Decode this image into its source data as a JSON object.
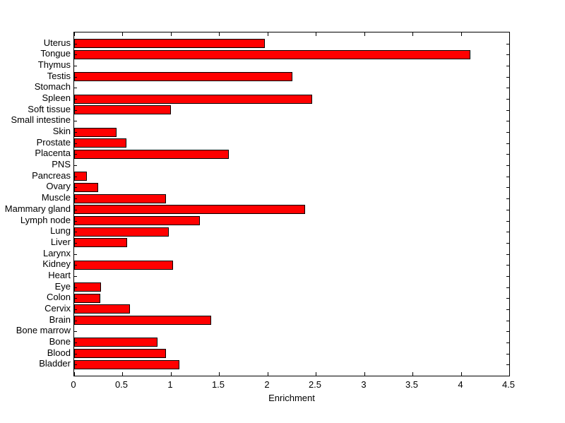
{
  "figure": {
    "background_color": "#ffffff",
    "axis_color": "#000000"
  },
  "chart_data": {
    "type": "bar",
    "orientation": "horizontal",
    "title": "",
    "xlabel": "Enrichment",
    "ylabel": "",
    "xlim": [
      0,
      4.5
    ],
    "xticks": [
      0,
      0.5,
      1,
      1.5,
      2,
      2.5,
      3,
      3.5,
      4,
      4.5
    ],
    "xtick_labels": [
      "0",
      "0.5",
      "1",
      "1.5",
      "2",
      "2.5",
      "3",
      "3.5",
      "4",
      "4.5"
    ],
    "grid": false,
    "legend": null,
    "bar_color": "#ff0000",
    "bar_edge_color": "#000000",
    "categories": [
      "Uterus",
      "Tongue",
      "Thymus",
      "Testis",
      "Stomach",
      "Spleen",
      "Soft tissue",
      "Small intestine",
      "Skin",
      "Prostate",
      "Placenta",
      "PNS",
      "Pancreas",
      "Ovary",
      "Muscle",
      "Mammary gland",
      "Lymph node",
      "Lung",
      "Liver",
      "Larynx",
      "Kidney",
      "Heart",
      "Eye",
      "Colon",
      "Cervix",
      "Brain",
      "Bone marrow",
      "Bone",
      "Blood",
      "Bladder"
    ],
    "values": [
      1.97,
      4.1,
      0,
      2.26,
      0,
      2.46,
      1.0,
      0,
      0.44,
      0.54,
      1.6,
      0,
      0.13,
      0.25,
      0.95,
      2.39,
      1.3,
      0.98,
      0.55,
      0,
      1.02,
      0,
      0.28,
      0.27,
      0.58,
      1.42,
      0,
      0.86,
      0.95,
      1.09
    ]
  }
}
